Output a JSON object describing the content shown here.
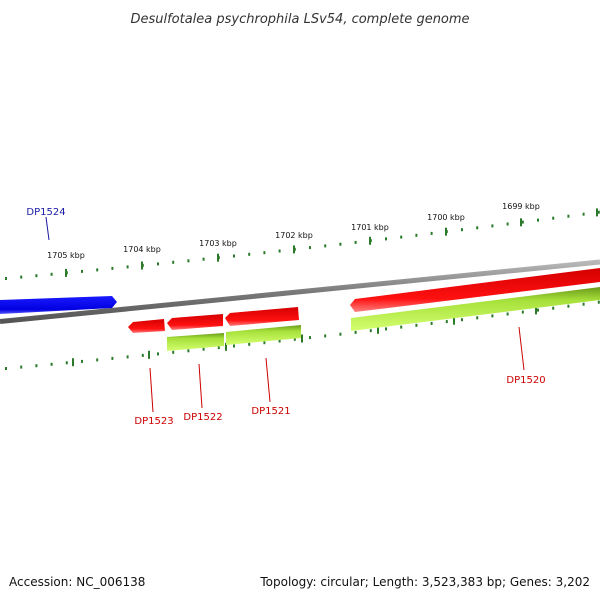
{
  "title": "Desulfotalea psychrophila LSv54, complete genome",
  "footer": {
    "accession": "Accession: NC_006138",
    "summary": "Topology: circular; Length: 3,523,383 bp; Genes: 3,202"
  },
  "colors": {
    "backbone": "#8a8a8a",
    "tick": "#2a7a2a",
    "forward_gene": "#0000ee",
    "forward_label": "#1a1aa6",
    "reverse_gene": "#ee0000",
    "reverse_label": "#cc0000",
    "reverse_cds": "#b5f04a"
  },
  "scale_labels": [
    "1705 kbp",
    "1704 kbp",
    "1703 kbp",
    "1702 kbp",
    "1701 kbp",
    "1700 kbp",
    "1699 kbp"
  ],
  "genes": [
    {
      "name": "DP1524",
      "strand": "forward"
    },
    {
      "name": "DP1523",
      "strand": "reverse"
    },
    {
      "name": "DP1522",
      "strand": "reverse"
    },
    {
      "name": "DP1521",
      "strand": "reverse"
    },
    {
      "name": "DP1520",
      "strand": "reverse"
    }
  ]
}
